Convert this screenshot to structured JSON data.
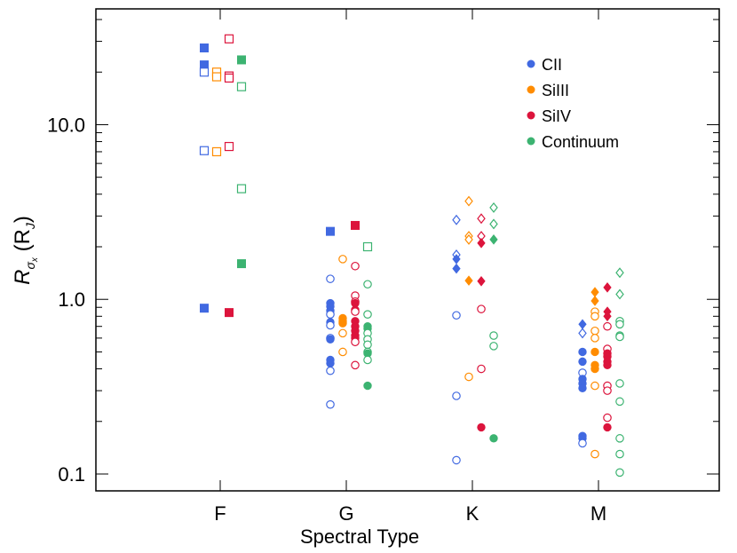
{
  "chart_data": {
    "type": "scatter",
    "xlabel": "Spectral Type",
    "ylabel": {
      "main": "R",
      "sub": "σ",
      "subsub": "x",
      "rest": " (R",
      "restsub": "J",
      "close": ")"
    },
    "yscale": "log",
    "ylim": [
      0.09,
      40
    ],
    "categories": [
      "F",
      "G",
      "K",
      "M"
    ],
    "yticks": [
      {
        "value": 0.1,
        "label": "0.1"
      },
      {
        "value": 1.0,
        "label": "1.0"
      },
      {
        "value": 10.0,
        "label": "10.0"
      }
    ],
    "legend_position": "top-right",
    "colors": {
      "CII": "#4169e1",
      "SiIII": "#ff8c00",
      "SiIV": "#dc143c",
      "Continuum": "#3cb371"
    },
    "series": [
      {
        "name": "CII",
        "color": "#4169e1",
        "points": [
          {
            "cat": "F",
            "v": 27.5,
            "m": "square",
            "f": true
          },
          {
            "cat": "F",
            "v": 22.0,
            "m": "square",
            "f": true
          },
          {
            "cat": "F",
            "v": 20.0,
            "m": "square",
            "f": false
          },
          {
            "cat": "F",
            "v": 7.1,
            "m": "square",
            "f": false
          },
          {
            "cat": "F",
            "v": 0.89,
            "m": "square",
            "f": true
          },
          {
            "cat": "G",
            "v": 2.45,
            "m": "square",
            "f": true
          },
          {
            "cat": "G",
            "v": 1.31,
            "m": "circle",
            "f": false
          },
          {
            "cat": "G",
            "v": 0.95,
            "m": "circle",
            "f": true
          },
          {
            "cat": "G",
            "v": 0.91,
            "m": "circle",
            "f": true
          },
          {
            "cat": "G",
            "v": 0.86,
            "m": "circle",
            "f": true
          },
          {
            "cat": "G",
            "v": 0.82,
            "m": "circle",
            "f": false
          },
          {
            "cat": "G",
            "v": 0.74,
            "m": "circle",
            "f": true
          },
          {
            "cat": "G",
            "v": 0.71,
            "m": "circle",
            "f": false
          },
          {
            "cat": "G",
            "v": 0.6,
            "m": "circle",
            "f": false
          },
          {
            "cat": "G",
            "v": 0.59,
            "m": "circle",
            "f": true
          },
          {
            "cat": "G",
            "v": 0.45,
            "m": "circle",
            "f": true
          },
          {
            "cat": "G",
            "v": 0.43,
            "m": "circle",
            "f": true
          },
          {
            "cat": "G",
            "v": 0.39,
            "m": "circle",
            "f": false
          },
          {
            "cat": "G",
            "v": 0.25,
            "m": "circle",
            "f": false
          },
          {
            "cat": "K",
            "v": 2.85,
            "m": "diamond",
            "f": false
          },
          {
            "cat": "K",
            "v": 1.8,
            "m": "diamond",
            "f": false
          },
          {
            "cat": "K",
            "v": 1.7,
            "m": "diamond",
            "f": true
          },
          {
            "cat": "K",
            "v": 1.5,
            "m": "diamond",
            "f": true
          },
          {
            "cat": "K",
            "v": 0.81,
            "m": "circle",
            "f": false
          },
          {
            "cat": "K",
            "v": 0.28,
            "m": "circle",
            "f": false
          },
          {
            "cat": "K",
            "v": 0.12,
            "m": "circle",
            "f": false
          },
          {
            "cat": "M",
            "v": 0.72,
            "m": "diamond",
            "f": true
          },
          {
            "cat": "M",
            "v": 0.64,
            "m": "diamond",
            "f": false
          },
          {
            "cat": "M",
            "v": 0.5,
            "m": "circle",
            "f": true
          },
          {
            "cat": "M",
            "v": 0.44,
            "m": "circle",
            "f": true
          },
          {
            "cat": "M",
            "v": 0.38,
            "m": "circle",
            "f": false
          },
          {
            "cat": "M",
            "v": 0.35,
            "m": "circle",
            "f": true
          },
          {
            "cat": "M",
            "v": 0.33,
            "m": "circle",
            "f": true
          },
          {
            "cat": "M",
            "v": 0.31,
            "m": "circle",
            "f": true
          },
          {
            "cat": "M",
            "v": 0.165,
            "m": "circle",
            "f": true
          },
          {
            "cat": "M",
            "v": 0.16,
            "m": "circle",
            "f": true
          },
          {
            "cat": "M",
            "v": 0.15,
            "m": "circle",
            "f": false
          }
        ]
      },
      {
        "name": "SiIII",
        "color": "#ff8c00",
        "points": [
          {
            "cat": "F",
            "v": 20.0,
            "m": "square",
            "f": false
          },
          {
            "cat": "F",
            "v": 18.8,
            "m": "square",
            "f": false
          },
          {
            "cat": "F",
            "v": 7.0,
            "m": "square",
            "f": false
          },
          {
            "cat": "G",
            "v": 1.7,
            "m": "circle",
            "f": false
          },
          {
            "cat": "G",
            "v": 0.78,
            "m": "circle",
            "f": true
          },
          {
            "cat": "G",
            "v": 0.75,
            "m": "circle",
            "f": true
          },
          {
            "cat": "G",
            "v": 0.73,
            "m": "circle",
            "f": true
          },
          {
            "cat": "G",
            "v": 0.64,
            "m": "circle",
            "f": false
          },
          {
            "cat": "G",
            "v": 0.5,
            "m": "circle",
            "f": false
          },
          {
            "cat": "K",
            "v": 3.65,
            "m": "diamond",
            "f": false
          },
          {
            "cat": "K",
            "v": 2.3,
            "m": "diamond",
            "f": false
          },
          {
            "cat": "K",
            "v": 2.2,
            "m": "diamond",
            "f": false
          },
          {
            "cat": "K",
            "v": 1.28,
            "m": "diamond",
            "f": true
          },
          {
            "cat": "K",
            "v": 0.36,
            "m": "circle",
            "f": false
          },
          {
            "cat": "M",
            "v": 1.1,
            "m": "diamond",
            "f": true
          },
          {
            "cat": "M",
            "v": 0.98,
            "m": "diamond",
            "f": true
          },
          {
            "cat": "M",
            "v": 0.85,
            "m": "circle",
            "f": false
          },
          {
            "cat": "M",
            "v": 0.8,
            "m": "circle",
            "f": false
          },
          {
            "cat": "M",
            "v": 0.66,
            "m": "circle",
            "f": false
          },
          {
            "cat": "M",
            "v": 0.6,
            "m": "circle",
            "f": false
          },
          {
            "cat": "M",
            "v": 0.5,
            "m": "circle",
            "f": true
          },
          {
            "cat": "M",
            "v": 0.42,
            "m": "circle",
            "f": true
          },
          {
            "cat": "M",
            "v": 0.4,
            "m": "circle",
            "f": true
          },
          {
            "cat": "M",
            "v": 0.32,
            "m": "circle",
            "f": false
          },
          {
            "cat": "M",
            "v": 0.13,
            "m": "circle",
            "f": false
          }
        ]
      },
      {
        "name": "SiIV",
        "color": "#dc143c",
        "points": [
          {
            "cat": "F",
            "v": 31.0,
            "m": "square",
            "f": false
          },
          {
            "cat": "F",
            "v": 19.0,
            "m": "square",
            "f": false
          },
          {
            "cat": "F",
            "v": 18.5,
            "m": "square",
            "f": false
          },
          {
            "cat": "F",
            "v": 7.5,
            "m": "square",
            "f": false
          },
          {
            "cat": "F",
            "v": 0.84,
            "m": "square",
            "f": true
          },
          {
            "cat": "G",
            "v": 2.65,
            "m": "square",
            "f": true
          },
          {
            "cat": "G",
            "v": 1.55,
            "m": "circle",
            "f": false
          },
          {
            "cat": "G",
            "v": 1.05,
            "m": "circle",
            "f": false
          },
          {
            "cat": "G",
            "v": 0.97,
            "m": "circle",
            "f": false
          },
          {
            "cat": "G",
            "v": 0.95,
            "m": "circle",
            "f": true
          },
          {
            "cat": "G",
            "v": 0.87,
            "m": "circle",
            "f": true
          },
          {
            "cat": "G",
            "v": 0.85,
            "m": "circle",
            "f": false
          },
          {
            "cat": "G",
            "v": 0.75,
            "m": "circle",
            "f": true
          },
          {
            "cat": "G",
            "v": 0.7,
            "m": "circle",
            "f": true
          },
          {
            "cat": "G",
            "v": 0.66,
            "m": "circle",
            "f": true
          },
          {
            "cat": "G",
            "v": 0.62,
            "m": "circle",
            "f": true
          },
          {
            "cat": "G",
            "v": 0.6,
            "m": "circle",
            "f": true
          },
          {
            "cat": "G",
            "v": 0.57,
            "m": "circle",
            "f": false
          },
          {
            "cat": "G",
            "v": 0.42,
            "m": "circle",
            "f": false
          },
          {
            "cat": "K",
            "v": 2.9,
            "m": "diamond",
            "f": false
          },
          {
            "cat": "K",
            "v": 2.3,
            "m": "diamond",
            "f": false
          },
          {
            "cat": "K",
            "v": 2.1,
            "m": "diamond",
            "f": true
          },
          {
            "cat": "K",
            "v": 1.27,
            "m": "diamond",
            "f": true
          },
          {
            "cat": "K",
            "v": 0.88,
            "m": "circle",
            "f": false
          },
          {
            "cat": "K",
            "v": 0.4,
            "m": "circle",
            "f": false
          },
          {
            "cat": "K",
            "v": 0.185,
            "m": "circle",
            "f": true
          },
          {
            "cat": "M",
            "v": 1.17,
            "m": "diamond",
            "f": true
          },
          {
            "cat": "M",
            "v": 0.85,
            "m": "diamond",
            "f": true
          },
          {
            "cat": "M",
            "v": 0.8,
            "m": "diamond",
            "f": true
          },
          {
            "cat": "M",
            "v": 0.7,
            "m": "circle",
            "f": false
          },
          {
            "cat": "M",
            "v": 0.52,
            "m": "circle",
            "f": false
          },
          {
            "cat": "M",
            "v": 0.49,
            "m": "circle",
            "f": true
          },
          {
            "cat": "M",
            "v": 0.47,
            "m": "circle",
            "f": true
          },
          {
            "cat": "M",
            "v": 0.44,
            "m": "circle",
            "f": true
          },
          {
            "cat": "M",
            "v": 0.42,
            "m": "circle",
            "f": true
          },
          {
            "cat": "M",
            "v": 0.32,
            "m": "circle",
            "f": false
          },
          {
            "cat": "M",
            "v": 0.3,
            "m": "circle",
            "f": false
          },
          {
            "cat": "M",
            "v": 0.21,
            "m": "circle",
            "f": false
          },
          {
            "cat": "M",
            "v": 0.185,
            "m": "circle",
            "f": true
          }
        ]
      },
      {
        "name": "Continuum",
        "color": "#3cb371",
        "points": [
          {
            "cat": "F",
            "v": 23.5,
            "m": "square",
            "f": true
          },
          {
            "cat": "F",
            "v": 16.5,
            "m": "square",
            "f": false
          },
          {
            "cat": "F",
            "v": 4.3,
            "m": "square",
            "f": false
          },
          {
            "cat": "F",
            "v": 1.6,
            "m": "square",
            "f": true
          },
          {
            "cat": "G",
            "v": 2.0,
            "m": "square",
            "f": false
          },
          {
            "cat": "G",
            "v": 1.22,
            "m": "circle",
            "f": false
          },
          {
            "cat": "G",
            "v": 0.82,
            "m": "circle",
            "f": false
          },
          {
            "cat": "G",
            "v": 0.7,
            "m": "circle",
            "f": true
          },
          {
            "cat": "G",
            "v": 0.68,
            "m": "circle",
            "f": true
          },
          {
            "cat": "G",
            "v": 0.64,
            "m": "circle",
            "f": false
          },
          {
            "cat": "G",
            "v": 0.59,
            "m": "circle",
            "f": false
          },
          {
            "cat": "G",
            "v": 0.55,
            "m": "circle",
            "f": false
          },
          {
            "cat": "G",
            "v": 0.5,
            "m": "circle",
            "f": false
          },
          {
            "cat": "G",
            "v": 0.49,
            "m": "circle",
            "f": true
          },
          {
            "cat": "G",
            "v": 0.45,
            "m": "circle",
            "f": false
          },
          {
            "cat": "G",
            "v": 0.32,
            "m": "circle",
            "f": true
          },
          {
            "cat": "K",
            "v": 3.35,
            "m": "diamond",
            "f": false
          },
          {
            "cat": "K",
            "v": 2.7,
            "m": "diamond",
            "f": false
          },
          {
            "cat": "K",
            "v": 2.2,
            "m": "diamond",
            "f": true
          },
          {
            "cat": "K",
            "v": 0.62,
            "m": "circle",
            "f": false
          },
          {
            "cat": "K",
            "v": 0.54,
            "m": "circle",
            "f": false
          },
          {
            "cat": "K",
            "v": 0.16,
            "m": "circle",
            "f": true
          },
          {
            "cat": "M",
            "v": 1.42,
            "m": "diamond",
            "f": false
          },
          {
            "cat": "M",
            "v": 1.07,
            "m": "diamond",
            "f": false
          },
          {
            "cat": "M",
            "v": 0.75,
            "m": "circle",
            "f": false
          },
          {
            "cat": "M",
            "v": 0.72,
            "m": "circle",
            "f": false
          },
          {
            "cat": "M",
            "v": 0.62,
            "m": "circle",
            "f": false
          },
          {
            "cat": "M",
            "v": 0.61,
            "m": "circle",
            "f": false
          },
          {
            "cat": "M",
            "v": 0.33,
            "m": "circle",
            "f": false
          },
          {
            "cat": "M",
            "v": 0.26,
            "m": "circle",
            "f": false
          },
          {
            "cat": "M",
            "v": 0.16,
            "m": "circle",
            "f": false
          },
          {
            "cat": "M",
            "v": 0.13,
            "m": "circle",
            "f": false
          },
          {
            "cat": "M",
            "v": 0.102,
            "m": "circle",
            "f": false
          }
        ]
      }
    ]
  }
}
